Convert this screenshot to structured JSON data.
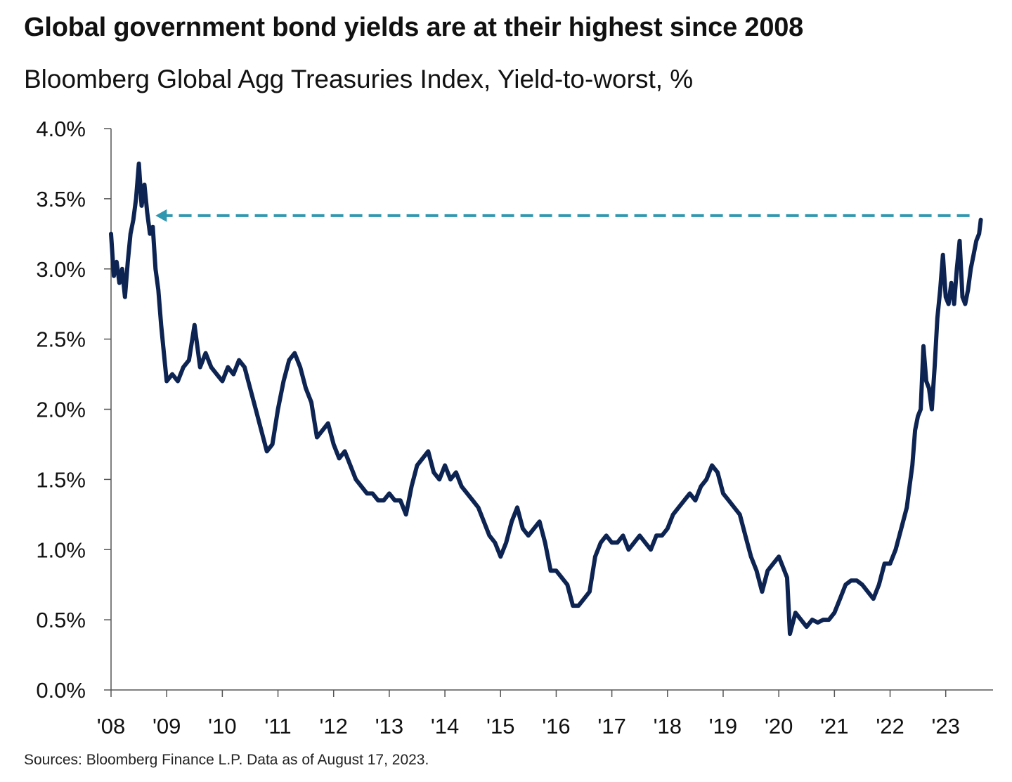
{
  "header": {
    "title": "Global government bond yields are at their highest since 2008",
    "subtitle": "Bloomberg Global Agg Treasuries Index, Yield-to-worst, %"
  },
  "footer": {
    "source": "Sources: Bloomberg Finance L.P. Data as of August 17, 2023."
  },
  "colors": {
    "line": "#0d2452",
    "arrow": "#2f97b0",
    "axis": "#555555"
  },
  "chart_data": {
    "type": "line",
    "title": "Global government bond yields are at their highest since 2008",
    "subtitle": "Bloomberg Global Agg Treasuries Index, Yield-to-worst, %",
    "xlabel": "",
    "ylabel": "",
    "xlim": [
      2008.0,
      2023.85
    ],
    "ylim": [
      0,
      4.0
    ],
    "grid": false,
    "legend": "none",
    "y_ticks": [
      {
        "value": 0.0,
        "label": "0.0%"
      },
      {
        "value": 0.5,
        "label": "0.5%"
      },
      {
        "value": 1.0,
        "label": "1.0%"
      },
      {
        "value": 1.5,
        "label": "1.5%"
      },
      {
        "value": 2.0,
        "label": "2.0%"
      },
      {
        "value": 2.5,
        "label": "2.5%"
      },
      {
        "value": 3.0,
        "label": "3.0%"
      },
      {
        "value": 3.5,
        "label": "3.5%"
      },
      {
        "value": 4.0,
        "label": "4.0%"
      }
    ],
    "x_ticks": [
      {
        "value": 2008,
        "label": "'08"
      },
      {
        "value": 2009,
        "label": "'09"
      },
      {
        "value": 2010,
        "label": "'10"
      },
      {
        "value": 2011,
        "label": "'11"
      },
      {
        "value": 2012,
        "label": "'12"
      },
      {
        "value": 2013,
        "label": "'13"
      },
      {
        "value": 2014,
        "label": "'14"
      },
      {
        "value": 2015,
        "label": "'15"
      },
      {
        "value": 2016,
        "label": "'16"
      },
      {
        "value": 2017,
        "label": "'17"
      },
      {
        "value": 2018,
        "label": "'18"
      },
      {
        "value": 2019,
        "label": "'19"
      },
      {
        "value": 2020,
        "label": "'20"
      },
      {
        "value": 2021,
        "label": "'21"
      },
      {
        "value": 2022,
        "label": "'22"
      },
      {
        "value": 2023,
        "label": "'23"
      }
    ],
    "series": [
      {
        "x": [
          2008.0,
          2008.05,
          2008.1,
          2008.15,
          2008.2,
          2008.25,
          2008.3,
          2008.35,
          2008.4,
          2008.45,
          2008.5,
          2008.55,
          2008.6,
          2008.65,
          2008.7,
          2008.75,
          2008.8,
          2008.85,
          2008.9,
          2008.95,
          2009.0,
          2009.1,
          2009.2,
          2009.3,
          2009.4,
          2009.5,
          2009.6,
          2009.7,
          2009.8,
          2009.9,
          2010.0,
          2010.1,
          2010.2,
          2010.3,
          2010.4,
          2010.5,
          2010.6,
          2010.7,
          2010.8,
          2010.9,
          2011.0,
          2011.1,
          2011.2,
          2011.3,
          2011.4,
          2011.5,
          2011.6,
          2011.7,
          2011.8,
          2011.9,
          2012.0,
          2012.1,
          2012.2,
          2012.3,
          2012.4,
          2012.5,
          2012.6,
          2012.7,
          2012.8,
          2012.9,
          2013.0,
          2013.1,
          2013.2,
          2013.3,
          2013.4,
          2013.5,
          2013.6,
          2013.7,
          2013.8,
          2013.9,
          2014.0,
          2014.1,
          2014.2,
          2014.3,
          2014.4,
          2014.5,
          2014.6,
          2014.7,
          2014.8,
          2014.9,
          2015.0,
          2015.1,
          2015.2,
          2015.3,
          2015.4,
          2015.5,
          2015.6,
          2015.7,
          2015.8,
          2015.9,
          2016.0,
          2016.1,
          2016.2,
          2016.3,
          2016.4,
          2016.5,
          2016.6,
          2016.7,
          2016.8,
          2016.9,
          2017.0,
          2017.1,
          2017.2,
          2017.3,
          2017.4,
          2017.5,
          2017.6,
          2017.7,
          2017.8,
          2017.9,
          2018.0,
          2018.1,
          2018.2,
          2018.3,
          2018.4,
          2018.5,
          2018.6,
          2018.7,
          2018.8,
          2018.9,
          2019.0,
          2019.1,
          2019.2,
          2019.3,
          2019.4,
          2019.5,
          2019.6,
          2019.7,
          2019.8,
          2019.9,
          2020.0,
          2020.1,
          2020.15,
          2020.2,
          2020.3,
          2020.4,
          2020.5,
          2020.6,
          2020.7,
          2020.8,
          2020.9,
          2021.0,
          2021.1,
          2021.2,
          2021.3,
          2021.4,
          2021.5,
          2021.6,
          2021.7,
          2021.8,
          2021.9,
          2022.0,
          2022.1,
          2022.2,
          2022.3,
          2022.35,
          2022.4,
          2022.45,
          2022.5,
          2022.55,
          2022.6,
          2022.65,
          2022.7,
          2022.75,
          2022.8,
          2022.85,
          2022.9,
          2022.95,
          2023.0,
          2023.05,
          2023.1,
          2023.15,
          2023.2,
          2023.25,
          2023.3,
          2023.35,
          2023.4,
          2023.45,
          2023.5,
          2023.55,
          2023.6,
          2023.63
        ],
        "y": [
          3.25,
          2.95,
          3.05,
          2.9,
          3.0,
          2.8,
          3.05,
          3.25,
          3.35,
          3.5,
          3.75,
          3.45,
          3.6,
          3.4,
          3.25,
          3.3,
          3.0,
          2.85,
          2.6,
          2.4,
          2.2,
          2.25,
          2.2,
          2.3,
          2.35,
          2.6,
          2.3,
          2.4,
          2.3,
          2.25,
          2.2,
          2.3,
          2.25,
          2.35,
          2.3,
          2.15,
          2.0,
          1.85,
          1.7,
          1.75,
          2.0,
          2.2,
          2.35,
          2.4,
          2.3,
          2.15,
          2.05,
          1.8,
          1.85,
          1.9,
          1.75,
          1.65,
          1.7,
          1.6,
          1.5,
          1.45,
          1.4,
          1.4,
          1.35,
          1.35,
          1.4,
          1.35,
          1.35,
          1.25,
          1.45,
          1.6,
          1.65,
          1.7,
          1.55,
          1.5,
          1.6,
          1.5,
          1.55,
          1.45,
          1.4,
          1.35,
          1.3,
          1.2,
          1.1,
          1.05,
          0.95,
          1.05,
          1.2,
          1.3,
          1.15,
          1.1,
          1.15,
          1.2,
          1.05,
          0.85,
          0.85,
          0.8,
          0.75,
          0.6,
          0.6,
          0.65,
          0.7,
          0.95,
          1.05,
          1.1,
          1.05,
          1.05,
          1.1,
          1.0,
          1.05,
          1.1,
          1.05,
          1.0,
          1.1,
          1.1,
          1.15,
          1.25,
          1.3,
          1.35,
          1.4,
          1.35,
          1.45,
          1.5,
          1.6,
          1.55,
          1.4,
          1.35,
          1.3,
          1.25,
          1.1,
          0.95,
          0.85,
          0.7,
          0.85,
          0.9,
          0.95,
          0.85,
          0.8,
          0.4,
          0.55,
          0.5,
          0.45,
          0.5,
          0.48,
          0.5,
          0.5,
          0.55,
          0.65,
          0.75,
          0.78,
          0.78,
          0.75,
          0.7,
          0.65,
          0.75,
          0.9,
          0.9,
          1.0,
          1.15,
          1.3,
          1.45,
          1.6,
          1.85,
          1.95,
          2.0,
          2.45,
          2.2,
          2.15,
          2.0,
          2.3,
          2.65,
          2.85,
          3.1,
          2.8,
          2.75,
          2.9,
          2.75,
          3.0,
          3.2,
          2.8,
          2.75,
          2.85,
          3.0,
          3.1,
          3.2,
          3.25,
          3.35
        ]
      }
    ],
    "annotations": [
      {
        "type": "dashed-arrow",
        "from_x": 2023.63,
        "to_x": 2008.8,
        "y": 3.38,
        "color": "#2f97b0",
        "points_to": "2008 peak level"
      }
    ]
  }
}
